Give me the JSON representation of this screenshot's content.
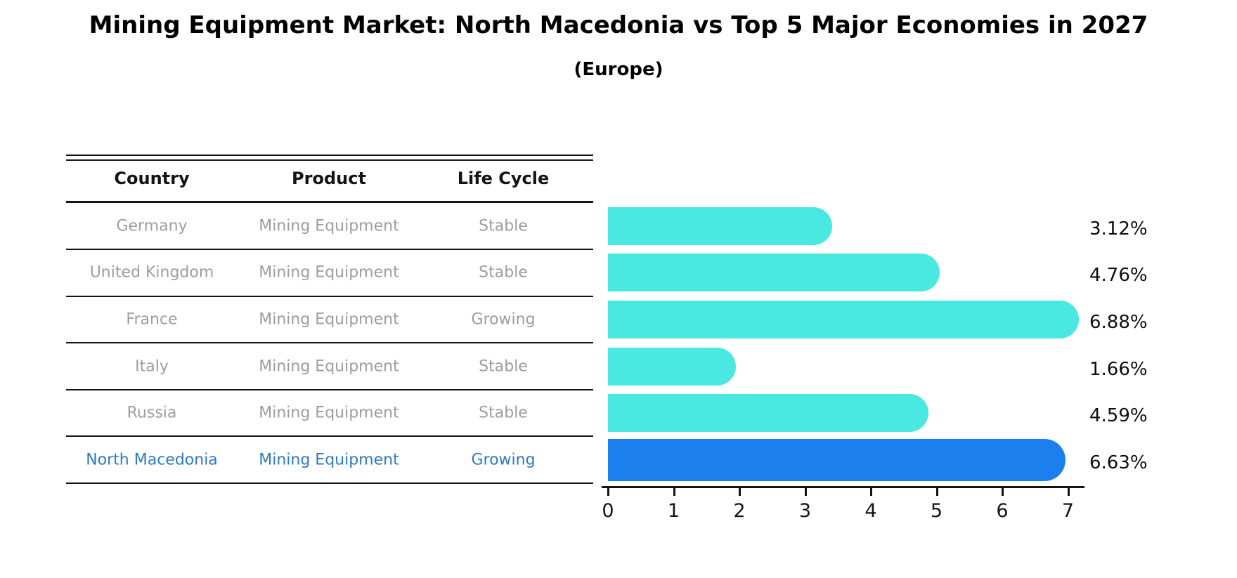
{
  "title": "Mining Equipment Market: North Macedonia vs Top 5 Major Economies in 2027",
  "subtitle": "(Europe)",
  "table": {
    "columns": [
      "Country",
      "Product",
      "Life Cycle"
    ]
  },
  "rows": [
    {
      "country": "Germany",
      "product": "Mining Equipment",
      "life_cycle": "Stable",
      "value": 3.12,
      "value_label": "3.12%",
      "highlighted": false
    },
    {
      "country": "United Kingdom",
      "product": "Mining Equipment",
      "life_cycle": "Stable",
      "value": 4.76,
      "value_label": "4.76%",
      "highlighted": false
    },
    {
      "country": "France",
      "product": "Mining Equipment",
      "life_cycle": "Growing",
      "value": 6.88,
      "value_label": "6.88%",
      "highlighted": false
    },
    {
      "country": "Italy",
      "product": "Mining Equipment",
      "life_cycle": "Stable",
      "value": 1.66,
      "value_label": "1.66%",
      "highlighted": false
    },
    {
      "country": "Russia",
      "product": "Mining Equipment",
      "life_cycle": "Stable",
      "value": 4.59,
      "value_label": "4.59%",
      "highlighted": false
    },
    {
      "country": "North Macedonia",
      "product": "Mining Equipment",
      "life_cycle": "Growing",
      "value": 6.63,
      "value_label": "6.63%",
      "highlighted": true
    }
  ],
  "axis": {
    "tick_labels": [
      "0",
      "1",
      "2",
      "3",
      "4",
      "5",
      "6",
      "7"
    ]
  },
  "colors": {
    "bar_default": "#49e8e1",
    "bar_highlight": "#1b7fee",
    "highlight_text": "#2e79c7",
    "muted_text": "#9d9d9d",
    "text": "#141414"
  },
  "chart_data": {
    "type": "bar",
    "orientation": "horizontal",
    "title": "Mining Equipment Market: North Macedonia vs Top 5 Major Economies in 2027",
    "subtitle": "(Europe)",
    "categories": [
      "Germany",
      "United Kingdom",
      "France",
      "Italy",
      "Russia",
      "North Macedonia"
    ],
    "values": [
      3.12,
      4.76,
      6.88,
      1.66,
      4.59,
      6.63
    ],
    "value_labels": [
      "3.12%",
      "4.76%",
      "6.88%",
      "1.66%",
      "4.59%",
      "6.63%"
    ],
    "xlabel": "",
    "ylabel": "",
    "xlim": [
      0,
      7.25
    ],
    "xticks": [
      0,
      1,
      2,
      3,
      4,
      5,
      6,
      7
    ],
    "grid": false,
    "legend": false,
    "highlight_category": "North Macedonia",
    "table_columns": [
      "Country",
      "Product",
      "Life Cycle"
    ],
    "table_rows": [
      [
        "Germany",
        "Mining Equipment",
        "Stable"
      ],
      [
        "United Kingdom",
        "Mining Equipment",
        "Stable"
      ],
      [
        "France",
        "Mining Equipment",
        "Growing"
      ],
      [
        "Italy",
        "Mining Equipment",
        "Stable"
      ],
      [
        "Russia",
        "Mining Equipment",
        "Stable"
      ],
      [
        "North Macedonia",
        "Mining Equipment",
        "Growing"
      ]
    ]
  }
}
